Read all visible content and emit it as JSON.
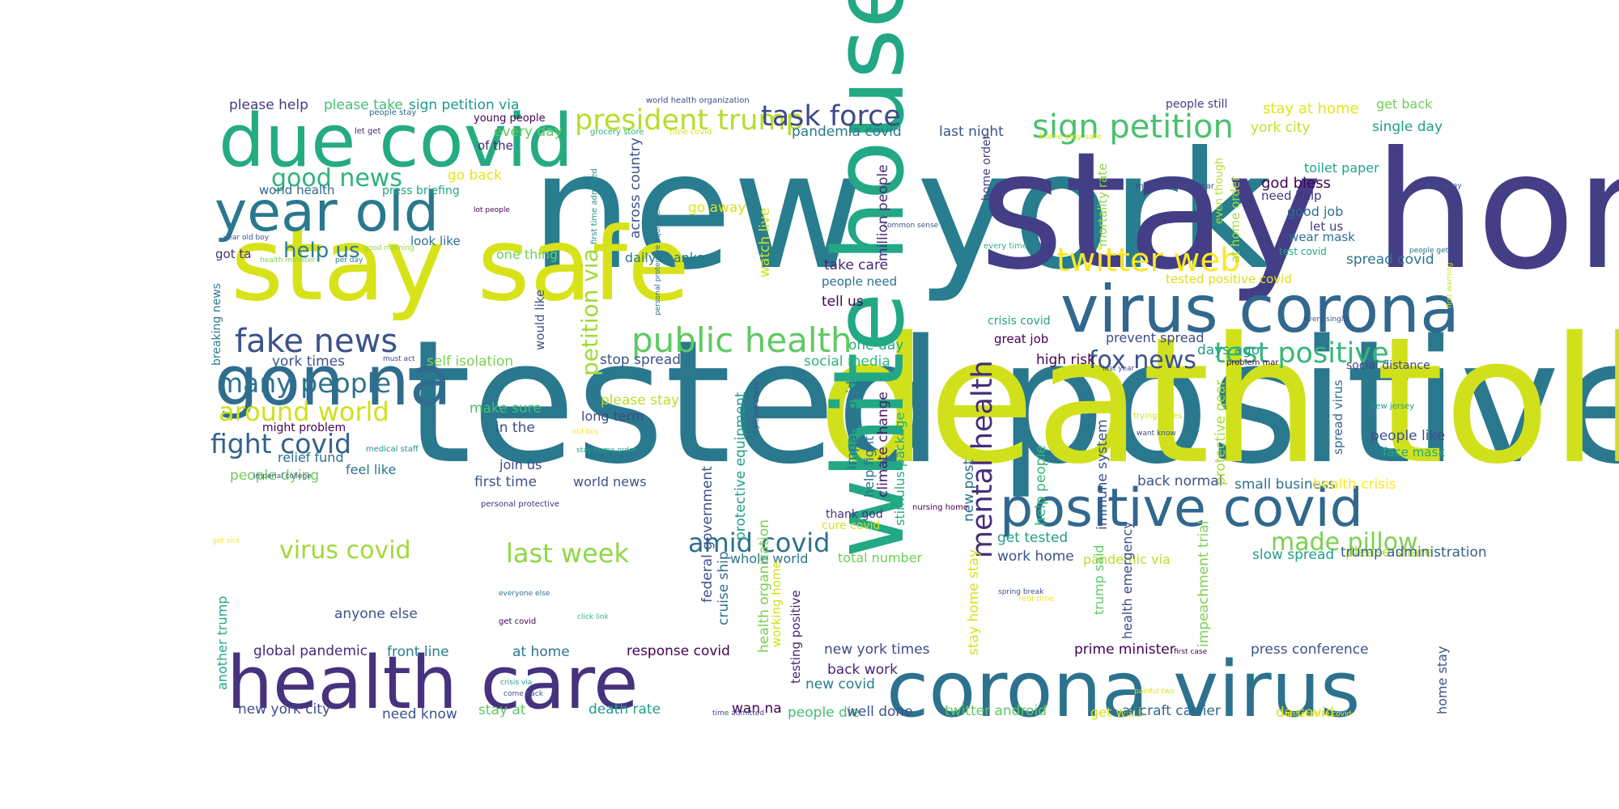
{
  "word_cloud": {
    "words": [
      {
        "text": "new york",
        "color": "#287d8e"
      },
      {
        "text": "stay home",
        "color": "#433e85"
      },
      {
        "text": "tested positive",
        "color": "#2a788e"
      },
      {
        "text": "death toll",
        "color": "#d0e11c"
      },
      {
        "text": "stay safe",
        "color": "#d8e219"
      },
      {
        "text": "white house",
        "color": "#22a884"
      },
      {
        "text": "corona virus",
        "color": "#2c728e"
      },
      {
        "text": "health care",
        "color": "#46327e"
      },
      {
        "text": "gon na",
        "color": "#2f6c8e"
      },
      {
        "text": "due covid",
        "color": "#25ab82"
      },
      {
        "text": "year old",
        "color": "#2a788e"
      },
      {
        "text": "virus corona",
        "color": "#31688e"
      },
      {
        "text": "positive covid",
        "color": "#31688e"
      },
      {
        "text": "public health",
        "color": "#5ec962"
      },
      {
        "text": "fake news",
        "color": "#3b528b"
      },
      {
        "text": "president trump",
        "color": "#b5de2b"
      },
      {
        "text": "task force",
        "color": "#3e4a89"
      },
      {
        "text": "sign petition",
        "color": "#4ac16d"
      },
      {
        "text": "twitter web",
        "color": "#fde725"
      },
      {
        "text": "test positive",
        "color": "#35b779"
      },
      {
        "text": "mental health",
        "color": "#472d7b"
      },
      {
        "text": "fox news",
        "color": "#3b528b"
      },
      {
        "text": "made pillow",
        "color": "#7ad151"
      },
      {
        "text": "virus covid",
        "color": "#a0da39"
      },
      {
        "text": "last week",
        "color": "#8fd744"
      },
      {
        "text": "amid covid",
        "color": "#2d708e"
      },
      {
        "text": "good news",
        "color": "#2fb47c"
      },
      {
        "text": "many people",
        "color": "#2c728e"
      },
      {
        "text": "around world",
        "color": "#d0e11c"
      },
      {
        "text": "fight covid",
        "color": "#34618d"
      },
      {
        "text": "help us",
        "color": "#277f8e"
      },
      {
        "text": "petition via",
        "color": "#9fda3a"
      },
      {
        "text": "please help",
        "color": "#443983"
      },
      {
        "text": "please take",
        "color": "#44bf70"
      },
      {
        "text": "sign petition via",
        "color": "#1f988b"
      },
      {
        "text": "young people",
        "color": "#440154"
      },
      {
        "text": "of the",
        "color": "#482475"
      },
      {
        "text": "every day",
        "color": "#5ec962"
      },
      {
        "text": "pandemia covid",
        "color": "#2a788e"
      },
      {
        "text": "last night",
        "color": "#3b528b"
      },
      {
        "text": "people still",
        "color": "#443a83"
      },
      {
        "text": "stay at home",
        "color": "#e5e419"
      },
      {
        "text": "get back",
        "color": "#6ccd5a"
      },
      {
        "text": "york city",
        "color": "#c2df23"
      },
      {
        "text": "single day",
        "color": "#1f9e89"
      },
      {
        "text": "world health",
        "color": "#31688e"
      },
      {
        "text": "press briefing",
        "color": "#20a386"
      },
      {
        "text": "go back",
        "color": "#e5e419"
      },
      {
        "text": "go away",
        "color": "#d8e219"
      },
      {
        "text": "look like",
        "color": "#2e6e8e"
      },
      {
        "text": "got ta",
        "color": "#472c7a"
      },
      {
        "text": "one thing",
        "color": "#6ece58"
      },
      {
        "text": "daily thanks",
        "color": "#2a788e"
      },
      {
        "text": "across country",
        "color": "#3b528b"
      },
      {
        "text": "take care",
        "color": "#482576"
      },
      {
        "text": "people need",
        "color": "#2d708e"
      },
      {
        "text": "tell us",
        "color": "#440154"
      },
      {
        "text": "one day",
        "color": "#25ab82"
      },
      {
        "text": "million people",
        "color": "#472c7a"
      },
      {
        "text": "watch live",
        "color": "#d0e11c"
      },
      {
        "text": "would like",
        "color": "#3b528b"
      },
      {
        "text": "home order",
        "color": "#414487"
      },
      {
        "text": "god bless",
        "color": "#440154"
      },
      {
        "text": "need help",
        "color": "#46337f"
      },
      {
        "text": "good job",
        "color": "#2e6e8e"
      },
      {
        "text": "let us",
        "color": "#443983"
      },
      {
        "text": "wear mask",
        "color": "#2d708e"
      },
      {
        "text": "test covid",
        "color": "#22a884"
      },
      {
        "text": "toilet paper",
        "color": "#20a486"
      },
      {
        "text": "spread covid",
        "color": "#2c728e"
      },
      {
        "text": "tested positive covid",
        "color": "#d8e219"
      },
      {
        "text": "even though",
        "color": "#b5de2b"
      },
      {
        "text": "at home order",
        "color": "#a5db36"
      },
      {
        "text": "mortality rate",
        "color": "#8fd744"
      },
      {
        "text": "great job",
        "color": "#440154"
      },
      {
        "text": "crisis covid",
        "color": "#20a386"
      },
      {
        "text": "days ago",
        "color": "#1f9e89"
      },
      {
        "text": "prevent spread",
        "color": "#3e4a89"
      },
      {
        "text": "high risk",
        "color": "#440154"
      },
      {
        "text": "york times",
        "color": "#3b528b"
      },
      {
        "text": "self isolation",
        "color": "#7ad151"
      },
      {
        "text": "stop spread",
        "color": "#3b528b"
      },
      {
        "text": "social media",
        "color": "#2fb47c"
      },
      {
        "text": "breaking news",
        "color": "#287d8e"
      },
      {
        "text": "please stay",
        "color": "#b8de29"
      },
      {
        "text": "long term",
        "color": "#3e4a89"
      },
      {
        "text": "make sure",
        "color": "#44bf70"
      },
      {
        "text": "in the",
        "color": "#3e4a89"
      },
      {
        "text": "social distance",
        "color": "#3e4a89"
      },
      {
        "text": "people like",
        "color": "#3b528b"
      },
      {
        "text": "face mask",
        "color": "#22a884"
      },
      {
        "text": "spread virus",
        "color": "#31688e"
      },
      {
        "text": "might problem",
        "color": "#440154"
      },
      {
        "text": "relief fund",
        "color": "#2d708e"
      },
      {
        "text": "medical staff",
        "color": "#21918c"
      },
      {
        "text": "feel like",
        "color": "#2c728e"
      },
      {
        "text": "people dying",
        "color": "#6ece58"
      },
      {
        "text": "join us",
        "color": "#3e4a89"
      },
      {
        "text": "first time",
        "color": "#3b528b"
      },
      {
        "text": "world news",
        "color": "#3b528b"
      },
      {
        "text": "protective equipment",
        "color": "#1f9e89"
      },
      {
        "text": "impact covid",
        "color": "#2d708e"
      },
      {
        "text": "climate change",
        "color": "#481b6d"
      },
      {
        "text": "stimulus package",
        "color": "#25ab82"
      },
      {
        "text": "help fight",
        "color": "#2c728e"
      },
      {
        "text": "new post",
        "color": "#2d708e"
      },
      {
        "text": "help people",
        "color": "#35b779"
      },
      {
        "text": "immune system",
        "color": "#3b528b"
      },
      {
        "text": "back normal",
        "color": "#3b528b"
      },
      {
        "text": "small business",
        "color": "#2c728e"
      },
      {
        "text": "health crisis",
        "color": "#fde725"
      },
      {
        "text": "protective gear",
        "color": "#a5db36"
      },
      {
        "text": "thank god",
        "color": "#46307e"
      },
      {
        "text": "federal government",
        "color": "#3b528b"
      },
      {
        "text": "cure covid",
        "color": "#d8e219"
      },
      {
        "text": "whole world",
        "color": "#2c728e"
      },
      {
        "text": "total number",
        "color": "#6ece58"
      },
      {
        "text": "get tested",
        "color": "#1f9e89"
      },
      {
        "text": "work home",
        "color": "#3b528b"
      },
      {
        "text": "pandemic via",
        "color": "#b5de2b"
      },
      {
        "text": "slow spread",
        "color": "#1f9e89"
      },
      {
        "text": "please share",
        "color": "#b5de2b"
      },
      {
        "text": "trump administration",
        "color": "#35608d"
      },
      {
        "text": "impeachment trial",
        "color": "#7ad151"
      },
      {
        "text": "trump said",
        "color": "#5ec962"
      },
      {
        "text": "health emergency",
        "color": "#3e4a89"
      },
      {
        "text": "cruise ship",
        "color": "#2d708e"
      },
      {
        "text": "working home",
        "color": "#d0e11c"
      },
      {
        "text": "testing positive",
        "color": "#481f70"
      },
      {
        "text": "health organization",
        "color": "#7ad151"
      },
      {
        "text": "stay home stay",
        "color": "#d8e219"
      },
      {
        "text": "anyone else",
        "color": "#3b528b"
      },
      {
        "text": "another trump",
        "color": "#20a386"
      },
      {
        "text": "global pandemic",
        "color": "#482878"
      },
      {
        "text": "front line",
        "color": "#287d8e"
      },
      {
        "text": "at home",
        "color": "#2c728e"
      },
      {
        "text": "response covid",
        "color": "#440154"
      },
      {
        "text": "new york times",
        "color": "#3e4a89"
      },
      {
        "text": "back work",
        "color": "#482475"
      },
      {
        "text": "new covid",
        "color": "#287d8e"
      },
      {
        "text": "people die",
        "color": "#44bf70"
      },
      {
        "text": "wan na",
        "color": "#440154"
      },
      {
        "text": "well done",
        "color": "#3b528b"
      },
      {
        "text": "twitter android",
        "color": "#5ec962"
      },
      {
        "text": "get well",
        "color": "#d8e219"
      },
      {
        "text": "aircraft carrier",
        "color": "#31688e"
      },
      {
        "text": "da covid",
        "color": "#d8e219"
      },
      {
        "text": "prime minister",
        "color": "#440154"
      },
      {
        "text": "press conference",
        "color": "#3b528b"
      },
      {
        "text": "home stay",
        "color": "#3b528b"
      },
      {
        "text": "new york city",
        "color": "#3e4a89"
      },
      {
        "text": "need know",
        "color": "#3b528b"
      },
      {
        "text": "stay at",
        "color": "#5ec962"
      },
      {
        "text": "death rate",
        "color": "#1f9e89"
      },
      {
        "text": "world health organization",
        "color": "#3e4a89"
      },
      {
        "text": "people stay",
        "color": "#31688e"
      },
      {
        "text": "let get",
        "color": "#482475"
      },
      {
        "text": "grocery store",
        "color": "#2fb47c"
      },
      {
        "text": "time covid",
        "color": "#d8e219"
      },
      {
        "text": "home stay safe",
        "color": "#d8e219"
      },
      {
        "text": "lot people",
        "color": "#440154"
      },
      {
        "text": "year old boy",
        "color": "#3b528b"
      },
      {
        "text": "good morning",
        "color": "#8fd744"
      },
      {
        "text": "health minister",
        "color": "#7ad151"
      },
      {
        "text": "per day",
        "color": "#287d8e"
      },
      {
        "text": "first time admitted",
        "color": "#21918c"
      },
      {
        "text": "personal protective equipment",
        "color": "#2d708e"
      },
      {
        "text": "common sense",
        "color": "#3b528b"
      },
      {
        "text": "might problem mar",
        "color": "#3e4a89"
      },
      {
        "text": "stay away",
        "color": "#3b528b"
      },
      {
        "text": "every time",
        "color": "#2fb47c"
      },
      {
        "text": "people get",
        "color": "#2c728e"
      },
      {
        "text": "must act",
        "color": "#414487"
      },
      {
        "text": "last year",
        "color": "#3b528b"
      },
      {
        "text": "every single",
        "color": "#3b528b"
      },
      {
        "text": "problem mar",
        "color": "#440154"
      },
      {
        "text": "first warning",
        "color": "#d0e11c"
      },
      {
        "text": "trying times",
        "color": "#d0e11c"
      },
      {
        "text": "want know",
        "color": "#3b528b"
      },
      {
        "text": "new jersey",
        "color": "#1f9e89"
      },
      {
        "text": "old boy",
        "color": "#fde725"
      },
      {
        "text": "stay home order",
        "color": "#20a386"
      },
      {
        "text": "please check",
        "color": "#3b528b"
      },
      {
        "text": "imperial college",
        "color": "#3b528b"
      },
      {
        "text": "personal protective",
        "color": "#472d7b"
      },
      {
        "text": "get sick",
        "color": "#fde725"
      },
      {
        "text": "nursing home",
        "color": "#440154"
      },
      {
        "text": "everyone else",
        "color": "#2c728e"
      },
      {
        "text": "get covid",
        "color": "#440154"
      },
      {
        "text": "click link",
        "color": "#35b779"
      },
      {
        "text": "spring break",
        "color": "#3b528b"
      },
      {
        "text": "real time",
        "color": "#fde725"
      },
      {
        "text": "first case",
        "color": "#440154"
      },
      {
        "text": "crisis via",
        "color": "#1f9e89"
      },
      {
        "text": "come back",
        "color": "#3b528b"
      },
      {
        "text": "painful two",
        "color": "#d8e219"
      },
      {
        "text": "time admitted",
        "color": "#3e4a89"
      },
      {
        "text": "test positive covid",
        "color": "#fde725"
      },
      {
        "text": "please stay home",
        "color": "#3e4a89"
      }
    ]
  }
}
